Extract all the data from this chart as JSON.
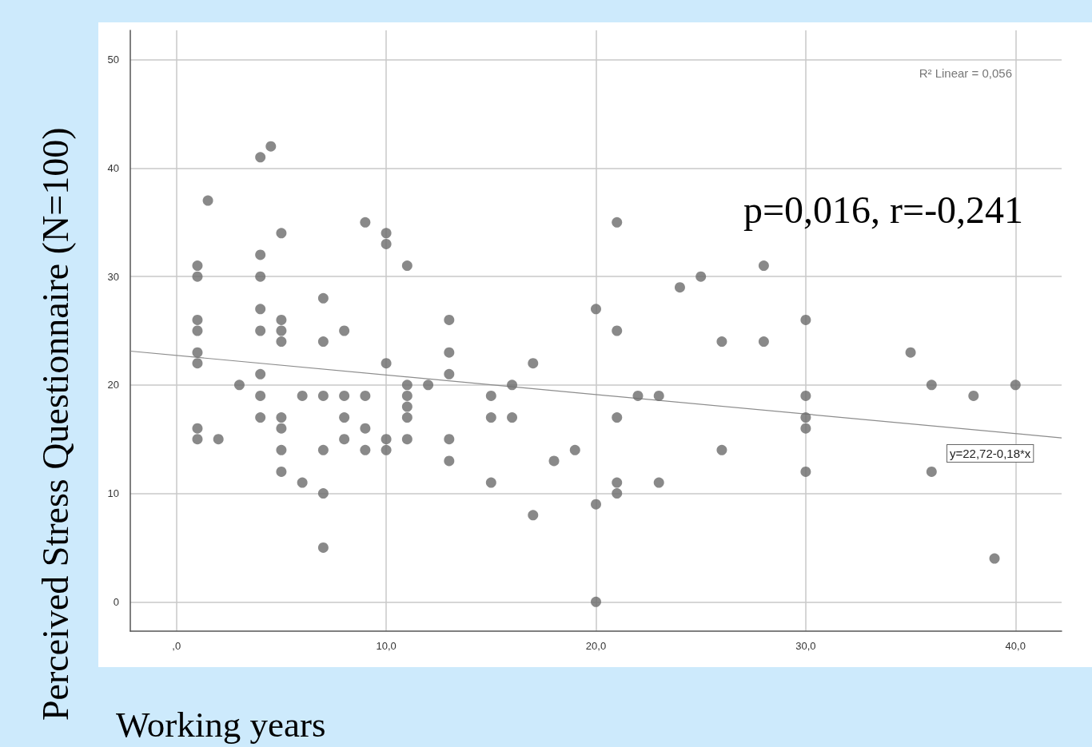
{
  "chart_data": {
    "type": "scatter",
    "xlabel": "Working years",
    "ylabel": "Perceived Stress Questionnaire (N=100)",
    "xlim": [
      -2.2,
      42.2
    ],
    "ylim": [
      -2.7,
      52.7
    ],
    "xticks": [
      {
        "value": 0,
        "label": ",0"
      },
      {
        "value": 10,
        "label": "10,0"
      },
      {
        "value": 20,
        "label": "20,0"
      },
      {
        "value": 30,
        "label": "30,0"
      },
      {
        "value": 40,
        "label": "40,0"
      }
    ],
    "yticks": [
      0,
      10,
      20,
      30,
      40,
      50
    ],
    "grid": true,
    "marker": "circle",
    "annotations": [
      "R² Linear = 0,056",
      "p=0,016, r=-0,241",
      "y=22,72-0,18*x"
    ],
    "series": [
      {
        "color": "#6b6b6b",
        "x": [
          1,
          1,
          1,
          1,
          1,
          1,
          1,
          1,
          1.5,
          2,
          3,
          4,
          4,
          4,
          4,
          4,
          4,
          4,
          4,
          4.5,
          5,
          5,
          5,
          5,
          5,
          5,
          5,
          5,
          6,
          6,
          7,
          7,
          7,
          7,
          7,
          7,
          8,
          8,
          8,
          8,
          9,
          9,
          9,
          9,
          10,
          10,
          10,
          10,
          10,
          11,
          11,
          11,
          11,
          11,
          11,
          12,
          13,
          13,
          13,
          13,
          13,
          15,
          15,
          15,
          16,
          16,
          17,
          17,
          18,
          19,
          20,
          20,
          20,
          21,
          21,
          21,
          21,
          21,
          22,
          23,
          23,
          24,
          25,
          26,
          26,
          28,
          28,
          30,
          30,
          30,
          30,
          30,
          35,
          36,
          36,
          38,
          39,
          40
        ],
        "values": [
          31,
          30,
          26,
          25,
          23,
          22,
          16,
          15,
          37,
          15,
          20,
          41,
          32,
          30,
          27,
          25,
          21,
          19,
          17,
          42,
          34,
          26,
          25,
          24,
          17,
          16,
          14,
          12,
          19,
          11,
          28,
          24,
          19,
          14,
          10,
          5,
          25,
          19,
          17,
          15,
          35,
          19,
          16,
          14,
          34,
          33,
          22,
          15,
          14,
          31,
          20,
          19,
          18,
          17,
          15,
          20,
          26,
          23,
          21,
          15,
          13,
          19,
          17,
          11,
          20,
          17,
          22,
          8,
          13,
          14,
          27,
          9,
          0,
          35,
          25,
          17,
          11,
          10,
          19,
          19,
          11,
          29,
          30,
          24,
          14,
          31,
          24,
          26,
          19,
          17,
          16,
          12,
          23,
          20,
          12,
          19,
          4,
          20
        ]
      },
      {
        "type": "line",
        "color": "#8c8c8c",
        "marker": "none",
        "x": [
          -2.2,
          42.2
        ],
        "values": [
          23.12,
          15.12
        ]
      }
    ]
  }
}
